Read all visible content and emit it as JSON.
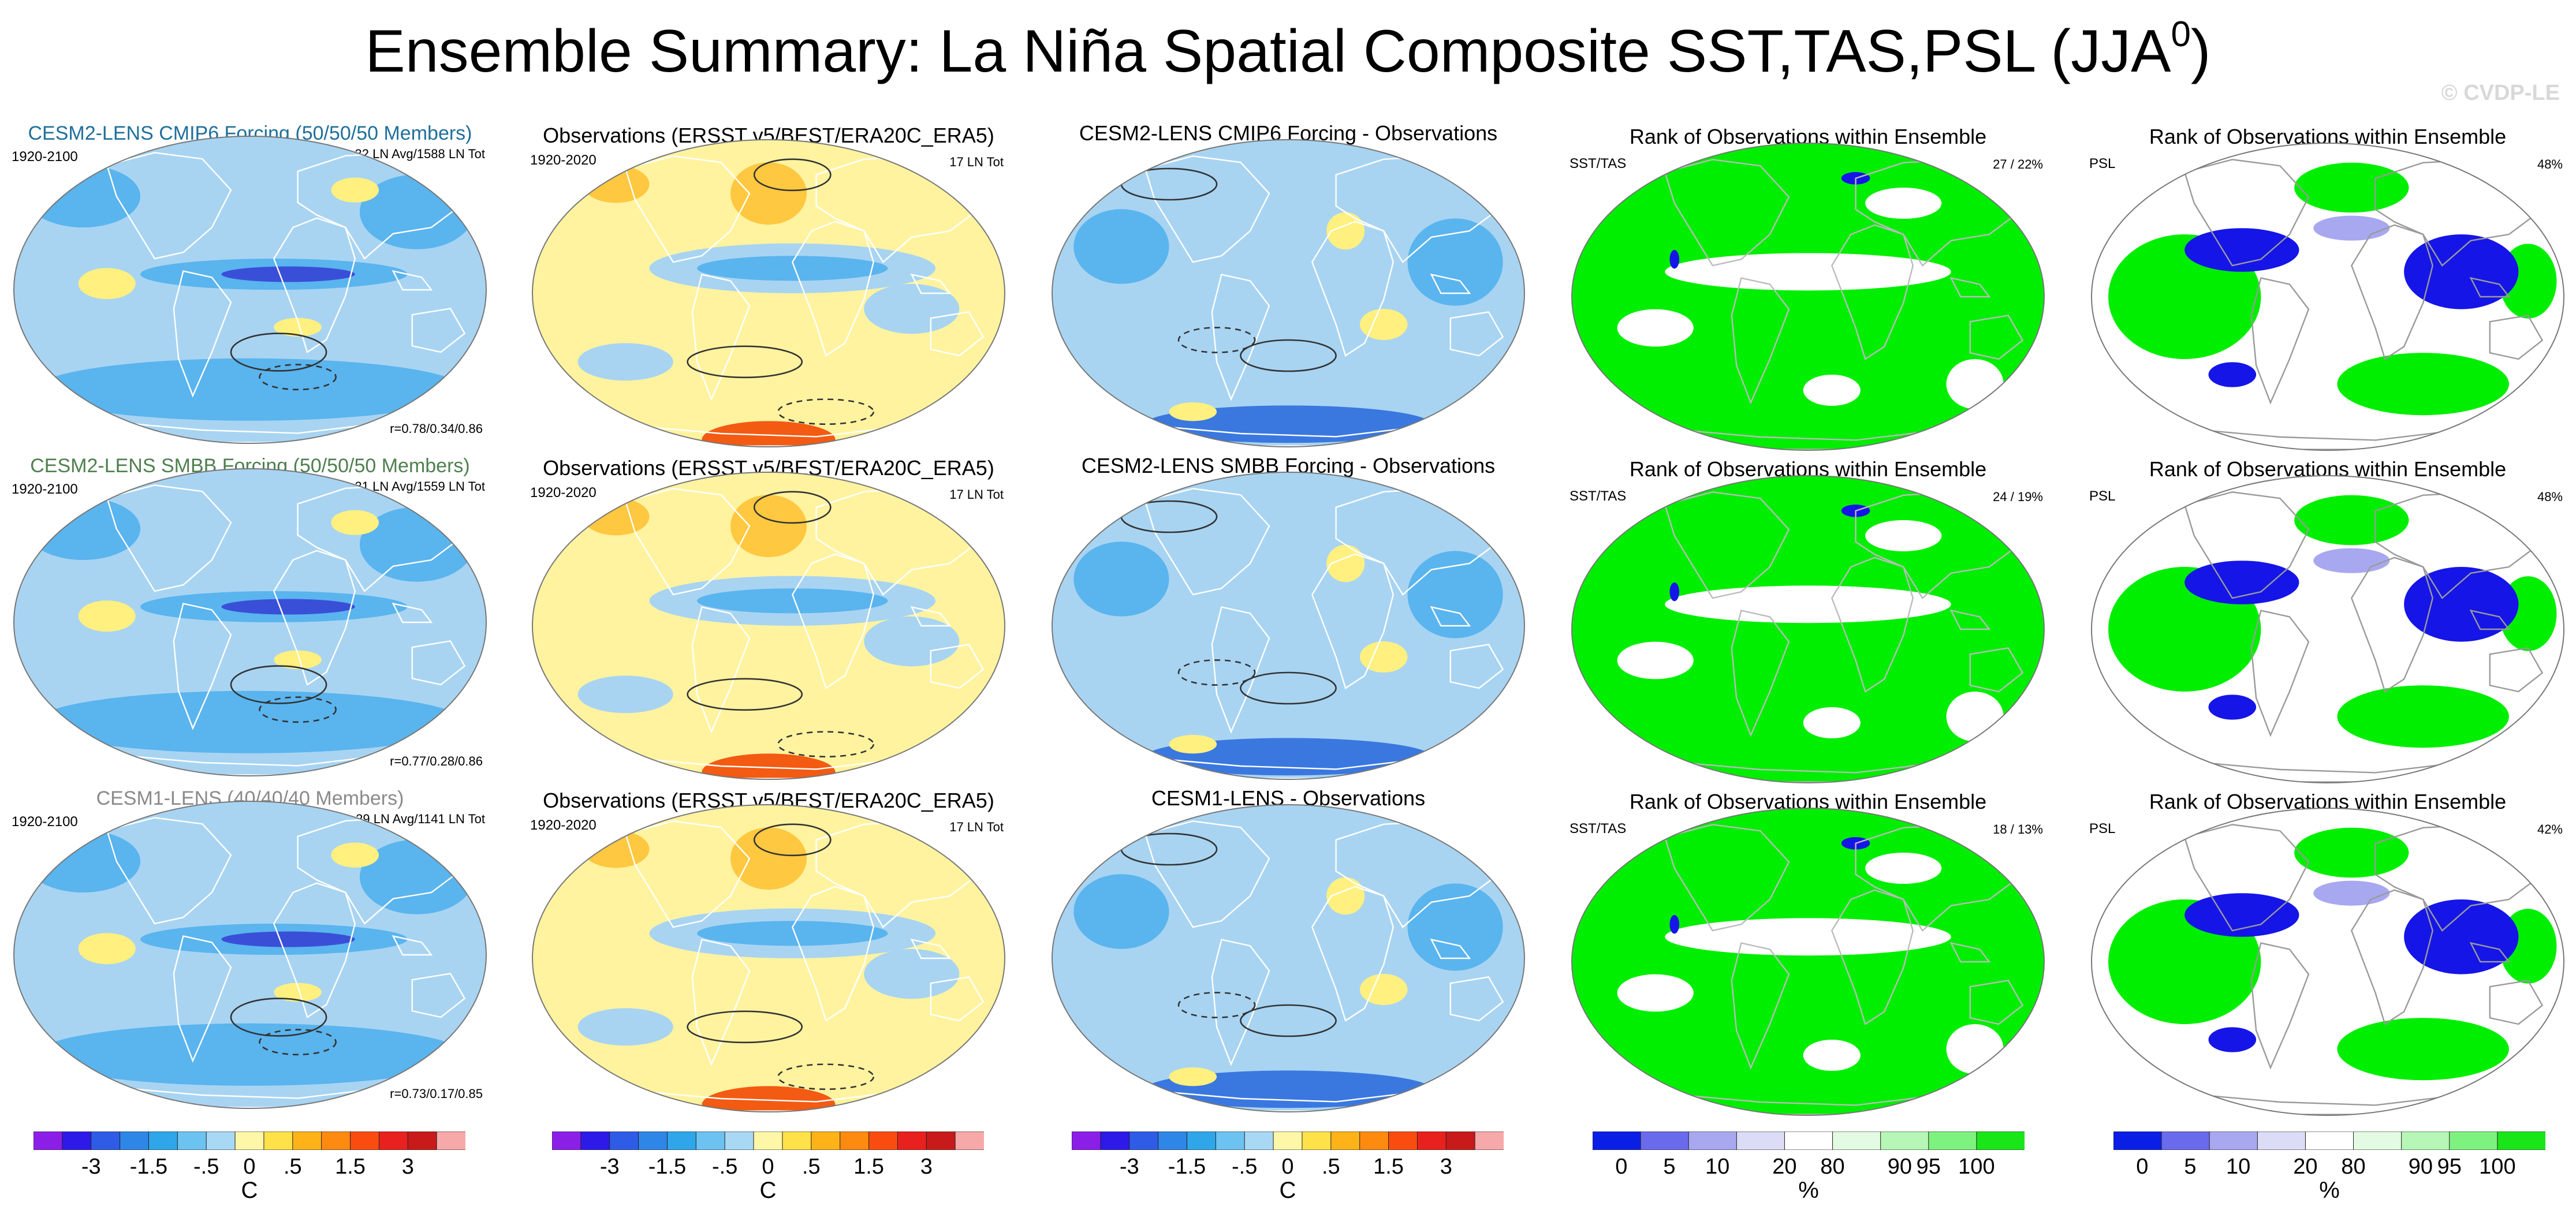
{
  "title": {
    "main": "Ensemble Summary: La Niña Spatial Composite SST,TAS,PSL (JJA",
    "sup": "0",
    "close": ")"
  },
  "watermark": "© CVDP-LE",
  "colors": {
    "cesm2_cmip6": "#1f6f9a",
    "cesm2_smbb": "#4f7f4f",
    "cesm1": "#8a8a8a",
    "ocean_cool": "#a8d4f2",
    "ocean_cold": "#5ab4ee",
    "warm": "#fff080",
    "rank_green": "#00ee00",
    "rank_blue": "#1515e8"
  },
  "rows": [
    {
      "model": {
        "title": "CESM2-LENS CMIP6 Forcing (50/50/50 Members)",
        "title_color": "#1f6f9a",
        "period": "1920-2100",
        "counts": "32 LN Avg/1588 LN Tot",
        "corr": "r=0.78/0.34/0.86"
      },
      "obs": {
        "title": "Observations (ERSST v5/BEST/ERA20C_ERA5)",
        "period": "1920-2020",
        "counts": "17 LN Tot"
      },
      "diff": {
        "title": "CESM2-LENS CMIP6 Forcing - Observations"
      },
      "rank_sst": {
        "title": "Rank of Observations within Ensemble",
        "label": "SST/TAS",
        "pct": "27 /  22%"
      },
      "rank_psl": {
        "title": "Rank of Observations within Ensemble",
        "label": "PSL",
        "pct": "48%"
      }
    },
    {
      "model": {
        "title": "CESM2-LENS SMBB Forcing (50/50/50 Members)",
        "title_color": "#4f7f4f",
        "period": "1920-2100",
        "counts": "31 LN Avg/1559 LN Tot",
        "corr": "r=0.77/0.28/0.86"
      },
      "obs": {
        "title": "Observations (ERSST v5/BEST/ERA20C_ERA5)",
        "period": "1920-2020",
        "counts": "17 LN Tot"
      },
      "diff": {
        "title": "CESM2-LENS SMBB Forcing - Observations"
      },
      "rank_sst": {
        "title": "Rank of Observations within Ensemble",
        "label": "SST/TAS",
        "pct": "24 /  19%"
      },
      "rank_psl": {
        "title": "Rank of Observations within Ensemble",
        "label": "PSL",
        "pct": "48%"
      }
    },
    {
      "model": {
        "title": "CESM1-LENS (40/40/40 Members)",
        "title_color": "#8a8a8a",
        "period": "1920-2100",
        "counts": "29 LN Avg/1141 LN Tot",
        "corr": "r=0.73/0.17/0.85"
      },
      "obs": {
        "title": "Observations (ERSST v5/BEST/ERA20C_ERA5)",
        "period": "1920-2020",
        "counts": "17 LN Tot"
      },
      "diff": {
        "title": "CESM1-LENS - Observations"
      },
      "rank_sst": {
        "title": "Rank of Observations within Ensemble",
        "label": "SST/TAS",
        "pct": "18 /  13%"
      },
      "rank_psl": {
        "title": "Rank of Observations within Ensemble",
        "label": "PSL",
        "pct": "42%"
      }
    }
  ],
  "colorbars": {
    "temp": {
      "unit": "C",
      "colors": [
        "#8b1fe8",
        "#2d1ae8",
        "#2e5ce6",
        "#2e86e6",
        "#2fa6ea",
        "#6cc3f1",
        "#a9d8f5",
        "#fff7a8",
        "#ffe14a",
        "#ffb318",
        "#ff8a10",
        "#fb4c10",
        "#e8201e",
        "#c81a1a",
        "#f7a9a9"
      ],
      "ticks": [
        "-3",
        "-1.5",
        "-.5",
        "0",
        ".5",
        "1.5",
        "3"
      ]
    },
    "rank": {
      "unit": "%",
      "colors": [
        "#0b1ee6",
        "#6a6aec",
        "#a8a8f0",
        "#dcdcf6",
        "#ffffff",
        "#e3fbe3",
        "#b6f6b6",
        "#7ef27e",
        "#19e619"
      ],
      "ticks": [
        "0",
        "5",
        "10",
        "20",
        "80",
        "90",
        "95",
        "100"
      ]
    }
  },
  "chart_data": [
    {
      "type": "heatmap",
      "title": "Ensemble Summary: La Niña Spatial Composite SST,TAS,PSL (JJA0)",
      "panels_per_row": [
        "model composite",
        "observations composite",
        "model - observations",
        "rank SST/TAS",
        "rank PSL"
      ],
      "rows": [
        "CESM2-LENS CMIP6 Forcing",
        "CESM2-LENS SMBB Forcing",
        "CESM1-LENS"
      ],
      "colorbar_temp": {
        "unit": "C",
        "levels": [
          -3,
          -1.5,
          -0.5,
          0,
          0.5,
          1.5,
          3
        ]
      },
      "colorbar_rank": {
        "unit": "%",
        "levels": [
          0,
          5,
          10,
          20,
          80,
          90,
          95,
          100
        ]
      },
      "rank_pct_sst_tas": [
        [
          27,
          22
        ],
        [
          24,
          19
        ],
        [
          18,
          13
        ]
      ],
      "rank_pct_psl": [
        48,
        48,
        42
      ]
    }
  ]
}
